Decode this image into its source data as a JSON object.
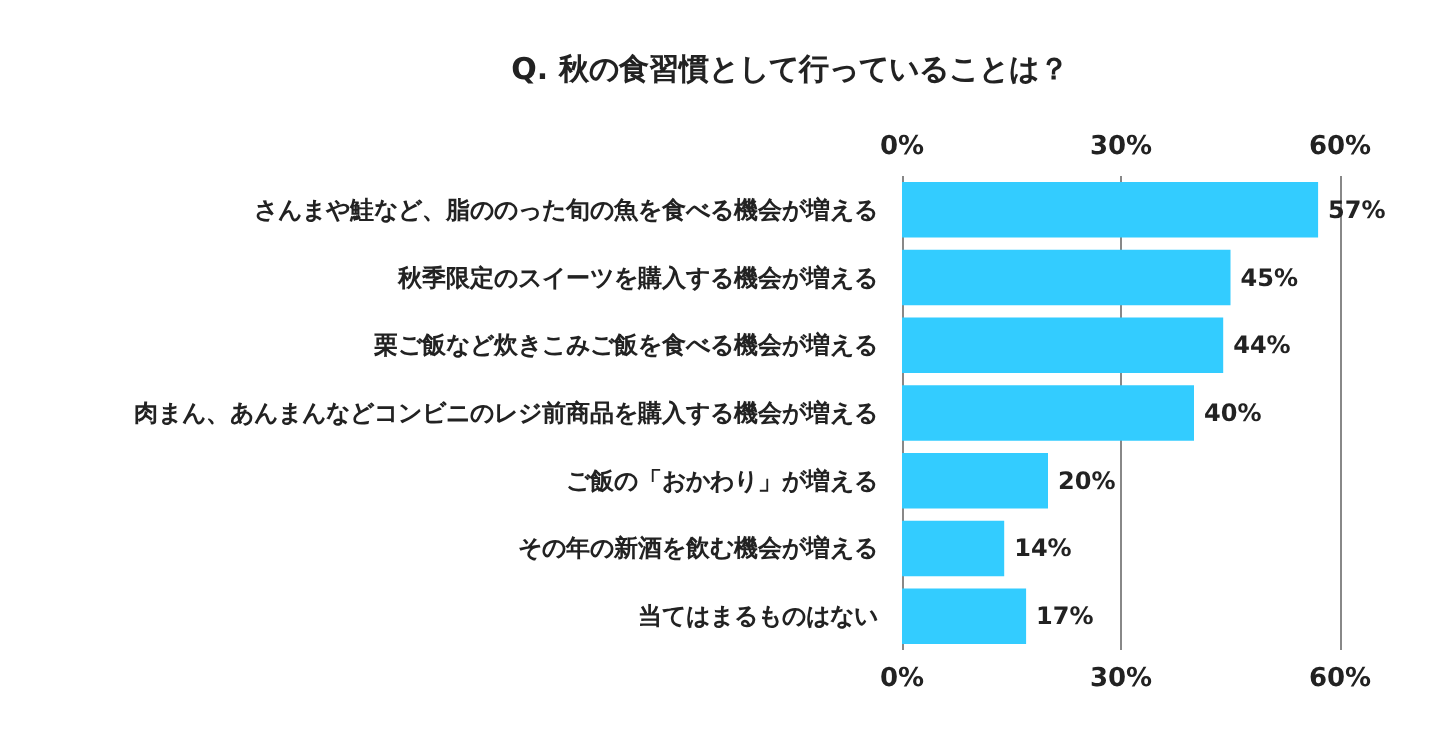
{
  "chart_data": {
    "type": "bar",
    "orientation": "horizontal",
    "title": "Q. 秋の食習慣として行っていることは？",
    "categories": [
      "さんまや鮭など、脂ののった旬の魚を食べる機会が増える",
      "秋季限定のスイーツを購入する機会が増える",
      "栗ご飯など炊きこみご飯を食べる機会が増える",
      "肉まん、あんまんなどコンビニのレジ前商品を購入する機会が増える",
      "ご飯の「おかわり」が増える",
      "その年の新酒を飲む機会が増える",
      "当てはまるものはない"
    ],
    "values": [
      57,
      45,
      44,
      40,
      20,
      14,
      17
    ],
    "value_labels": [
      "57%",
      "45%",
      "44%",
      "40%",
      "20%",
      "14%",
      "17%"
    ],
    "color": "#33ccff",
    "xlim": [
      0,
      60
    ],
    "xticks": [
      {
        "value": 0,
        "label": "0%"
      },
      {
        "value": 30,
        "label": "30%"
      },
      {
        "value": 60,
        "label": "60%"
      }
    ],
    "x2lim": [
      0,
      60
    ],
    "x2ticks": [
      {
        "value": 0,
        "label": "0%"
      },
      {
        "value": 30,
        "label": "30%"
      },
      {
        "value": 60,
        "label": "60%"
      }
    ],
    "grid": "x"
  }
}
